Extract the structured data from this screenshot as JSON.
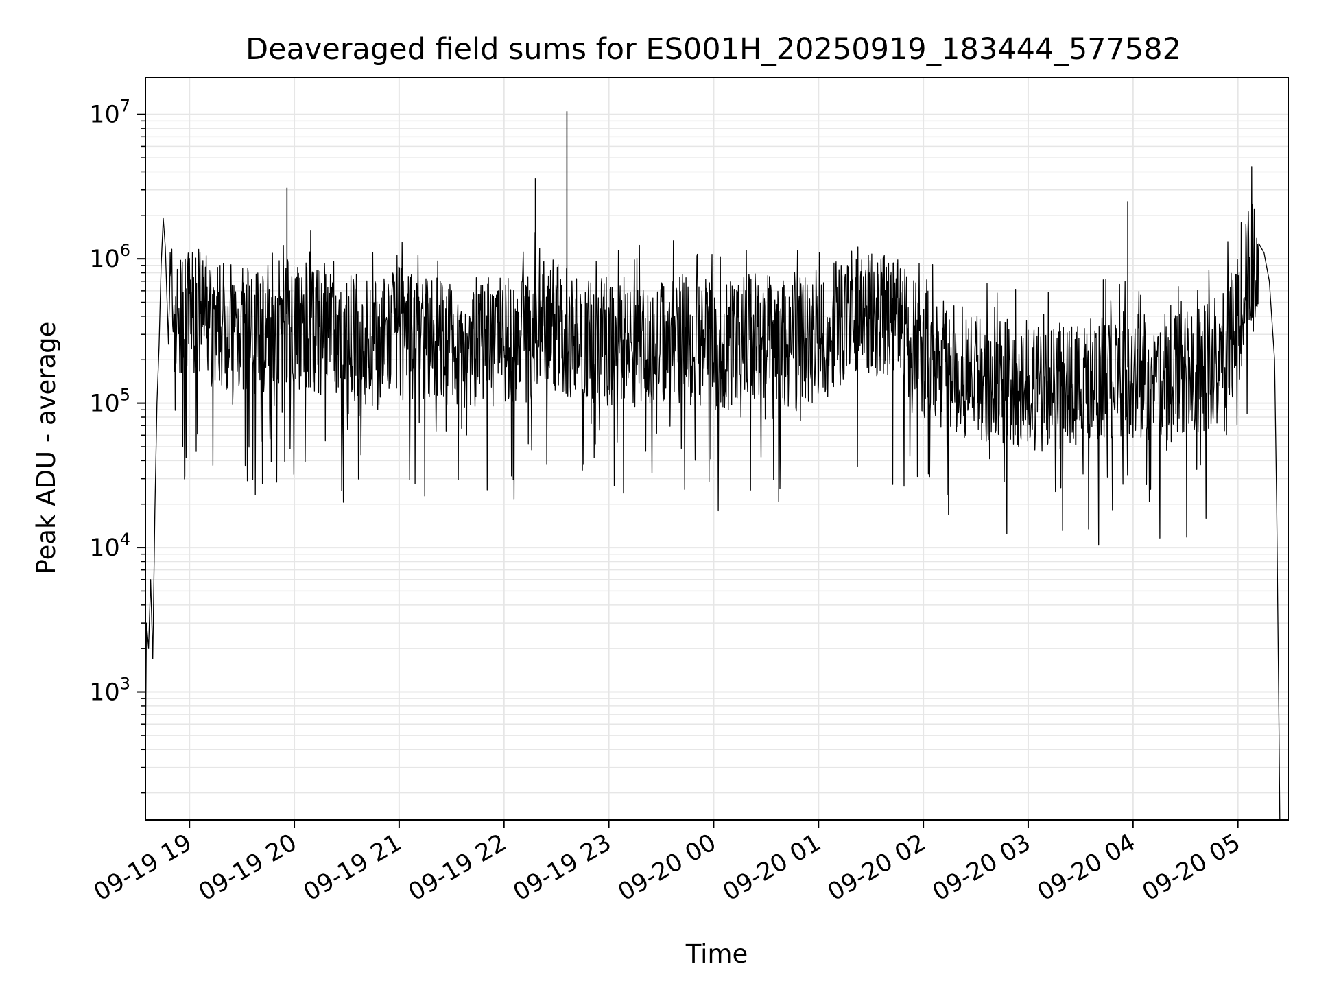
{
  "chart_data": {
    "type": "line",
    "title": "Deaveraged field sums for ES001H_20250919_183444_577582",
    "xlabel": "Time",
    "ylabel": "Peak ADU - average",
    "yscale": "log",
    "ylim": [
      130,
      18000000
    ],
    "xlim_hours": [
      -0.42,
      10.48
    ],
    "grid": true,
    "line_color": "#000000",
    "grid_color": "#e6e6e6",
    "x_ticks": [
      {
        "label": "09-19 19",
        "hour": 0
      },
      {
        "label": "09-19 20",
        "hour": 1
      },
      {
        "label": "09-19 21",
        "hour": 2
      },
      {
        "label": "09-19 22",
        "hour": 3
      },
      {
        "label": "09-19 23",
        "hour": 4
      },
      {
        "label": "09-20 00",
        "hour": 5
      },
      {
        "label": "09-20 01",
        "hour": 6
      },
      {
        "label": "09-20 02",
        "hour": 7
      },
      {
        "label": "09-20 03",
        "hour": 8
      },
      {
        "label": "09-20 04",
        "hour": 9
      },
      {
        "label": "09-20 05",
        "hour": 10
      }
    ],
    "y_ticks": [
      {
        "base": "10",
        "exp": "3",
        "value": 1000
      },
      {
        "base": "10",
        "exp": "4",
        "value": 10000
      },
      {
        "base": "10",
        "exp": "5",
        "value": 100000
      },
      {
        "base": "10",
        "exp": "6",
        "value": 1000000
      },
      {
        "base": "10",
        "exp": "7",
        "value": 10000000
      }
    ],
    "series": [
      {
        "name": "Peak ADU - average",
        "x_hours": [
          -0.42,
          -0.41,
          -0.39,
          -0.37,
          -0.35,
          -0.33,
          -0.31,
          -0.29,
          -0.27,
          -0.25,
          -0.23,
          -0.2,
          -0.18,
          -0.16,
          -0.14,
          -0.12,
          -0.1,
          -0.08,
          -0.05,
          0.0,
          0.2,
          0.4,
          0.6,
          0.8,
          1.0,
          1.2,
          1.4,
          1.6,
          1.8,
          2.0,
          2.2,
          2.4,
          2.6,
          2.8,
          3.0,
          3.2,
          3.4,
          3.6,
          3.8,
          4.0,
          4.2,
          4.4,
          4.6,
          4.8,
          5.0,
          5.2,
          5.4,
          5.6,
          5.8,
          6.0,
          6.2,
          6.4,
          6.6,
          6.8,
          7.0,
          7.2,
          7.4,
          7.6,
          7.8,
          8.0,
          8.2,
          8.4,
          8.6,
          8.8,
          9.0,
          9.2,
          9.4,
          9.6,
          9.8,
          9.9,
          10.0,
          10.05,
          10.1,
          10.15,
          10.2,
          10.25,
          10.3,
          10.35,
          10.37,
          10.39,
          10.4
        ],
        "values": [
          300,
          3000,
          2000,
          6000,
          1700,
          18000,
          100000,
          250000,
          900000,
          1900000,
          1200000,
          800000,
          600000,
          500000,
          450000,
          400000,
          420000,
          380000,
          400000,
          500000,
          420000,
          380000,
          350000,
          400000,
          420000,
          350000,
          300000,
          320000,
          280000,
          350000,
          320000,
          300000,
          280000,
          300000,
          290000,
          310000,
          420000,
          350000,
          310000,
          300000,
          280000,
          300000,
          310000,
          290000,
          280000,
          300000,
          320000,
          290000,
          270000,
          300000,
          400000,
          500000,
          450000,
          380000,
          250000,
          200000,
          180000,
          170000,
          160000,
          150000,
          140000,
          150000,
          160000,
          170000,
          180000,
          170000,
          160000,
          180000,
          220000,
          300000,
          400000,
          600000,
          900000,
          1200000,
          1300000,
          1100000,
          700000,
          200000,
          20000,
          900,
          130
        ]
      }
    ],
    "annotations": {
      "spike_peaks": [
        {
          "hour": 0.93,
          "value": 3100000
        },
        {
          "hour": 3.3,
          "value": 3600000
        },
        {
          "hour": 3.6,
          "value": 10500000
        },
        {
          "hour": 8.95,
          "value": 2500000
        }
      ]
    }
  }
}
